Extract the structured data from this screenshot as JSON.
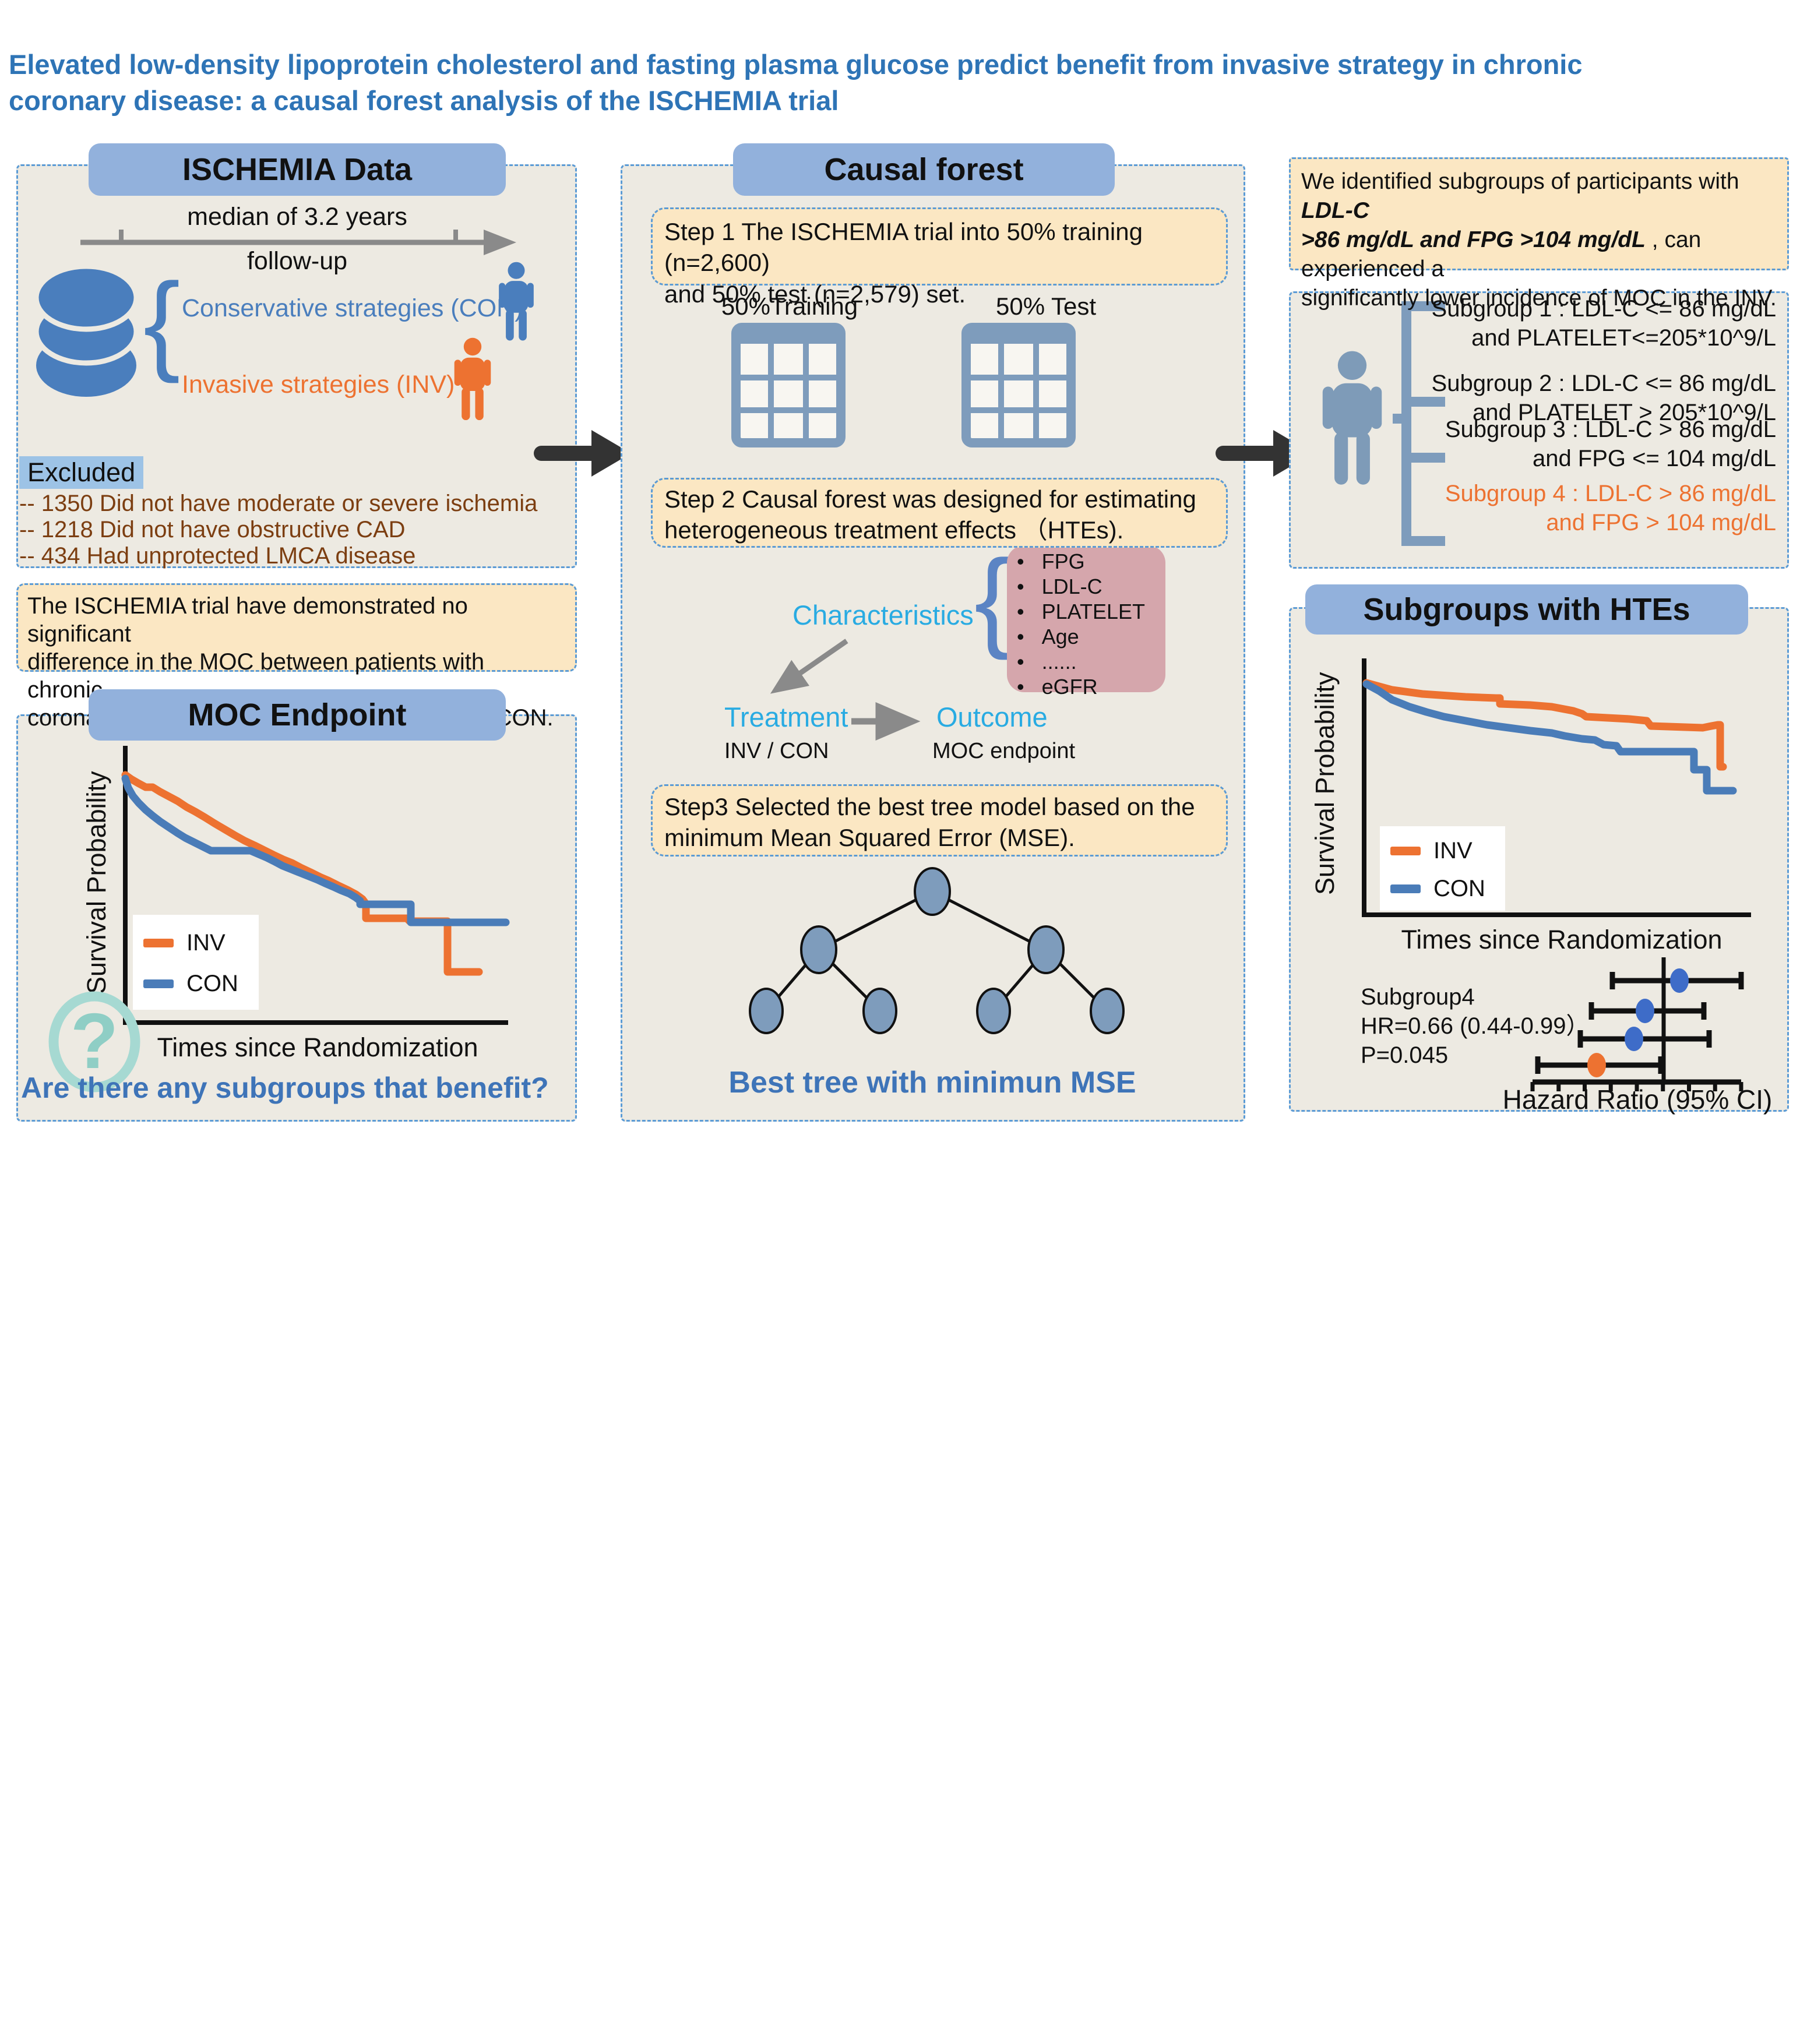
{
  "title": {
    "l1": "Elevated low-density lipoprotein cholesterol and fasting plasma glucose predict benefit from invasive strategy in chronic",
    "l2": "coronary disease: a causal forest analysis of the ISCHEMIA trial"
  },
  "colors": {
    "title_blue": "#2E74B6",
    "header_fill": "#92B1DC",
    "panel_bg": "#EDEAE2",
    "dashed_border": "#5B9BD5",
    "yellow_box": "#FBE7C3",
    "pink_box": "#D5A6AC",
    "inv_orange": "#ED7231",
    "con_blue": "#4A7CB8",
    "cyan_label": "#29ABE2",
    "brown_text": "#7C3E11",
    "excluded_highlight": "#9DC3E6",
    "grayblue_icon": "#7E9CBC",
    "teal_icon": "#8FCEC5",
    "forest_dot_blue": "#3E6CC8"
  },
  "left": {
    "header": "ISCHEMIA Data",
    "timeline_top": "median of 3.2 years",
    "timeline_bottom": "follow-up",
    "con_label": "Conservative strategies (CON)",
    "inv_label": "Invasive strategies (INV)",
    "excluded_label": "Excluded",
    "excluded_items": [
      "-- 1350 Did not have moderate or severe ischemia",
      "-- 1218 Did not have obstructive CAD",
      "-- 434 Had unprotected LMCA disease"
    ],
    "summary_lines": [
      "The ISCHEMIA trial  have demonstrated no significant",
      "difference in the MOC between patients with chronic",
      "coronary artery disease treated with INV and CON."
    ],
    "moc_header": "MOC Endpoint",
    "moc_ylabel": "Survival Probability",
    "moc_xlabel": "Times since Randomization",
    "legend_inv": "INV",
    "legend_con": "CON",
    "question": "Are there any subgroups that benefit?"
  },
  "middle": {
    "header": "Causal forest",
    "step1_lines": [
      "Step 1 The ISCHEMIA trial into 50% training (n=2,600)",
      "and 50% test (n=2,579) set."
    ],
    "training_label": "50%Training",
    "test_label": "50% Test",
    "step2_lines": [
      "Step 2 Causal forest was designed for estimating",
      "heterogeneous treatment effects （HTEs)."
    ],
    "characteristics_label": "Characteristics",
    "characteristics": [
      "FPG",
      "LDL-C",
      "PLATELET",
      "Age",
      "......",
      "eGFR"
    ],
    "treatment_label": "Treatment",
    "outcome_label": "Outcome",
    "treatment_sub": "INV / CON",
    "outcome_sub": "MOC endpoint",
    "step3_lines": [
      "Step3 Selected the best tree model based on the",
      "minimum Mean Squared Error (MSE)."
    ],
    "best_tree": "Best tree with minimun MSE"
  },
  "right": {
    "finding": {
      "l1_pre": "We identified subgroups of participants with ",
      "l1_em": "LDL-C",
      "l2_em": ">86 mg/dL and FPG >104 mg/dL",
      "l2_post": " , can experienced a",
      "l3": "significantly lower incidence of MOC in the INV."
    },
    "subgroups": [
      {
        "line1": "Subgroup 1 : LDL-C <= 86 mg/dL",
        "line2": "and PLATELET<=205*10^9/L"
      },
      {
        "line1": "Subgroup 2 : LDL-C <= 86 mg/dL",
        "line2": "and PLATELET > 205*10^9/L"
      },
      {
        "line1": "Subgroup 3 : LDL-C > 86 mg/dL",
        "line2": "and FPG <= 104 mg/dL"
      },
      {
        "line1": "Subgroup 4 : LDL-C > 86 mg/dL",
        "line2": "and FPG > 104 mg/dL"
      }
    ],
    "hte_header": "Subgroups with HTEs",
    "hte_ylabel": "Survival Probability",
    "hte_xlabel": "Times since Randomization",
    "legend_inv": "INV",
    "legend_con": "CON",
    "forest_lines": [
      "Subgroup4",
      "HR=0.66 (0.44-0.99）",
      "P=0.045"
    ],
    "hazard_label": "Hazard Ratio (95% CI)"
  },
  "chart_data": {
    "moc_km": {
      "type": "line",
      "title": "MOC Endpoint",
      "xlabel": "Times since Randomization",
      "ylabel": "Survival Probability",
      "legend_position": "lower-left",
      "note": "Kaplan-Meier style step curves, unlabeled axes; INV and CON overlap and cross",
      "series": [
        {
          "name": "INV",
          "color": "#ED7231",
          "points": [
            [
              65,
              60
            ],
            [
              75,
              67
            ],
            [
              87,
              74
            ],
            [
              100,
              81
            ],
            [
              112,
              81
            ],
            [
              125,
              89
            ],
            [
              140,
              97
            ],
            [
              155,
              105
            ],
            [
              170,
              115
            ],
            [
              185,
              123
            ],
            [
              202,
              133
            ],
            [
              218,
              143
            ],
            [
              235,
              153
            ],
            [
              252,
              163
            ],
            [
              270,
              173
            ],
            [
              287,
              181
            ],
            [
              303,
              189
            ],
            [
              319,
              197
            ],
            [
              336,
              205
            ],
            [
              351,
              211
            ],
            [
              366,
              219
            ],
            [
              383,
              227
            ],
            [
              399,
              235
            ],
            [
              413,
              241
            ],
            [
              429,
              249
            ],
            [
              446,
              257
            ],
            [
              461,
              265
            ],
            [
              472,
              273
            ],
            [
              478,
              281
            ],
            [
              478,
              306
            ],
            [
              548,
              306
            ],
            [
              553,
              311
            ],
            [
              618,
              311
            ],
            [
              618,
              398
            ],
            [
              672,
              398
            ]
          ]
        },
        {
          "name": "CON",
          "color": "#4A7CB8",
          "points": [
            [
              65,
              66
            ],
            [
              70,
              82
            ],
            [
              78,
              96
            ],
            [
              88,
              108
            ],
            [
              100,
              120
            ],
            [
              112,
              130
            ],
            [
              125,
              140
            ],
            [
              140,
              150
            ],
            [
              155,
              160
            ],
            [
              168,
              168
            ],
            [
              180,
              174
            ],
            [
              192,
              180
            ],
            [
              204,
              186
            ],
            [
              212,
              190
            ],
            [
              280,
              190
            ],
            [
              294,
              196
            ],
            [
              308,
              202
            ],
            [
              320,
              208
            ],
            [
              335,
              216
            ],
            [
              350,
              222
            ],
            [
              365,
              228
            ],
            [
              380,
              234
            ],
            [
              395,
              240
            ],
            [
              408,
              246
            ],
            [
              422,
              252
            ],
            [
              435,
              258
            ],
            [
              450,
              264
            ],
            [
              460,
              270
            ],
            [
              468,
              276
            ],
            [
              468,
              282
            ],
            [
              555,
              282
            ],
            [
              555,
              313
            ],
            [
              718,
              313
            ]
          ]
        }
      ]
    },
    "hte_km": {
      "type": "line",
      "title": "Subgroups with HTEs",
      "xlabel": "Times since Randomization",
      "ylabel": "Survival Probability",
      "legend_position": "lower-left",
      "note": "INV stays above CON for Subgroup 4; unlabeled axes",
      "series": [
        {
          "name": "INV",
          "color": "#ED7231",
          "points": [
            [
              45,
              72
            ],
            [
              89,
              84
            ],
            [
              141,
              91
            ],
            [
              215,
              96
            ],
            [
              267,
              98
            ],
            [
              274,
              98
            ],
            [
              274,
              108
            ],
            [
              326,
              110
            ],
            [
              363,
              113
            ],
            [
              400,
              120
            ],
            [
              415,
              125
            ],
            [
              422,
              130
            ],
            [
              459,
              132
            ],
            [
              496,
              134
            ],
            [
              526,
              137
            ],
            [
              533,
              146
            ],
            [
              622,
              149
            ],
            [
              637,
              146
            ],
            [
              648,
              144
            ],
            [
              652,
              144
            ],
            [
              652,
              216
            ],
            [
              657,
              216
            ]
          ]
        },
        {
          "name": "CON",
          "color": "#4A7CB8",
          "points": [
            [
              45,
              74
            ],
            [
              67,
              86
            ],
            [
              89,
              101
            ],
            [
              119,
              113
            ],
            [
              148,
              122
            ],
            [
              178,
              130
            ],
            [
              215,
              137
            ],
            [
              252,
              144
            ],
            [
              289,
              149
            ],
            [
              326,
              154
            ],
            [
              363,
              158
            ],
            [
              385,
              163
            ],
            [
              415,
              168
            ],
            [
              437,
              170
            ],
            [
              452,
              178
            ],
            [
              474,
              180
            ],
            [
              481,
              190
            ],
            [
              607,
              190
            ],
            [
              607,
              221
            ],
            [
              629,
              221
            ],
            [
              629,
              257
            ],
            [
              674,
              257
            ]
          ]
        }
      ]
    },
    "forest": {
      "type": "forest",
      "subgroup4_hr": 0.66,
      "subgroup4_ci": [
        0.44,
        0.99
      ],
      "subgroup4_p": 0.045,
      "axis_label": "Hazard Ratio (95% CI)",
      "ref_x": 575,
      "axis": {
        "x1": 350,
        "x2": 708,
        "y": 222,
        "ticks": 9
      },
      "rows": [
        {
          "y": 48,
          "lo": 487,
          "hi": 708,
          "dot": 602,
          "color": "#3E6CC8"
        },
        {
          "y": 100,
          "lo": 451,
          "hi": 644,
          "dot": 543,
          "color": "#3E6CC8"
        },
        {
          "y": 148,
          "lo": 432,
          "hi": 653,
          "dot": 524,
          "color": "#3E6CC8"
        },
        {
          "y": 193,
          "lo": 359,
          "hi": 570,
          "dot": 460,
          "color": "#ED7231"
        }
      ]
    }
  }
}
